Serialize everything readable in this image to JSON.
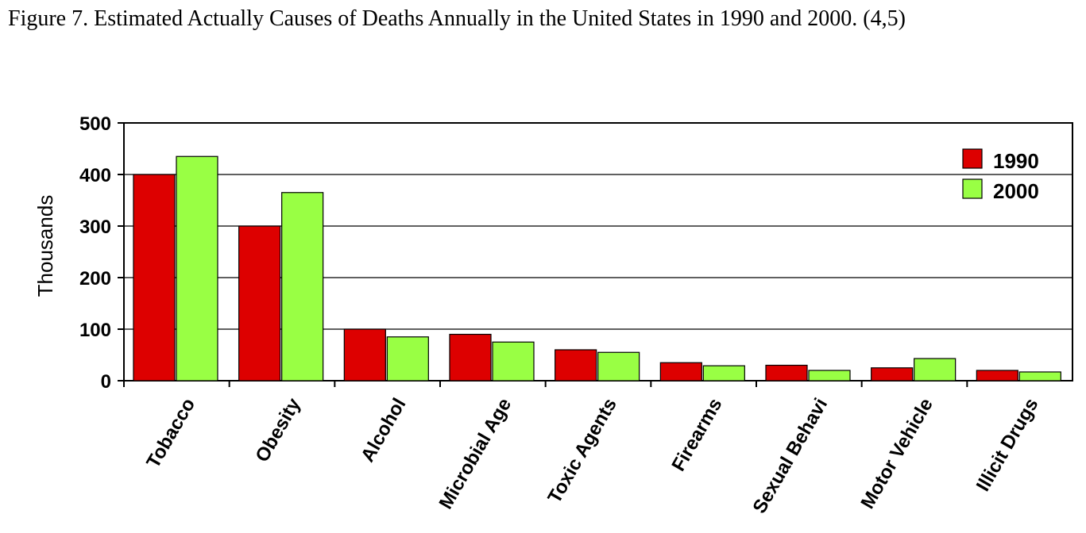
{
  "caption": "Figure 7.  Estimated Actually Causes of Deaths Annually in the United States in 1990 and 2000. (4,5)",
  "chart_data": {
    "type": "bar",
    "title": "",
    "xlabel": "",
    "ylabel": "Thousands",
    "ylim": [
      0,
      500
    ],
    "yticks": [
      0,
      100,
      200,
      300,
      400,
      500
    ],
    "grid": true,
    "legend_position": "top-right",
    "categories": [
      "Tobacco",
      "Obesity",
      "Alcohol",
      "Microbial Age",
      "Toxic Agents",
      "Firearms",
      "Sexual Behavi",
      "Motor Vehicle",
      "Illicit Drugs"
    ],
    "series": [
      {
        "name": "1990",
        "color": "#dd0000",
        "values": [
          400,
          300,
          100,
          90,
          60,
          35,
          30,
          25,
          20
        ]
      },
      {
        "name": "2000",
        "color": "#99ff44",
        "values": [
          435,
          365,
          85,
          75,
          55,
          29,
          20,
          43,
          17
        ]
      }
    ]
  }
}
